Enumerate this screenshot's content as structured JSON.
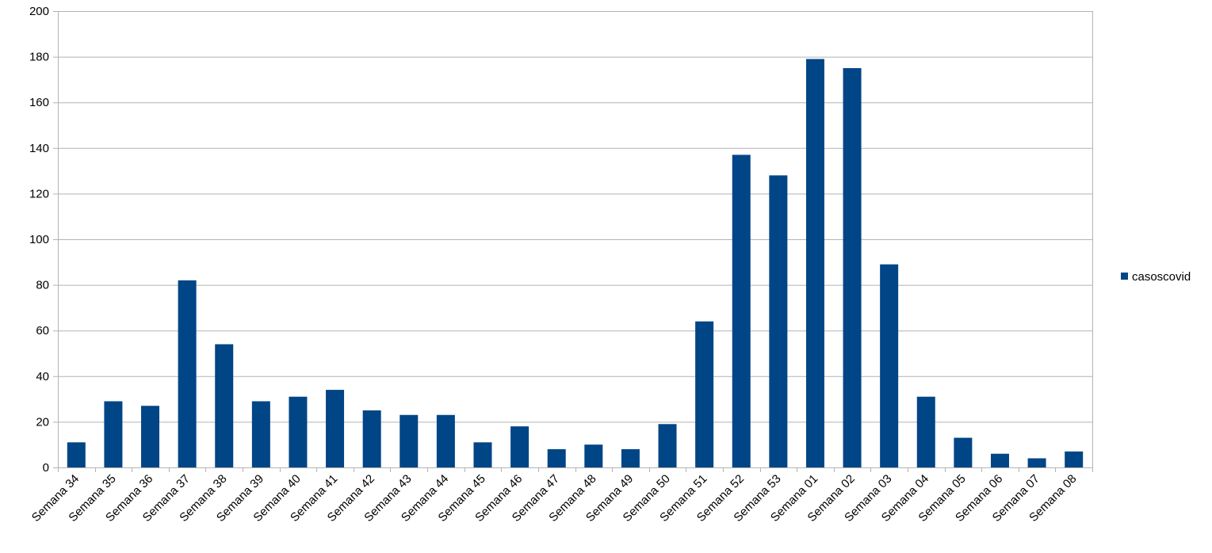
{
  "colors": {
    "bar": "#004586",
    "grid": "#b3b3b3",
    "axis": "#b3b3b3",
    "background": "#ffffff"
  },
  "chart_data": {
    "type": "bar",
    "title": "",
    "xlabel": "",
    "ylabel": "",
    "ylim": [
      0,
      200
    ],
    "yticks": [
      0,
      20,
      40,
      60,
      80,
      100,
      120,
      140,
      160,
      180,
      200
    ],
    "grid": true,
    "legend_position": "right",
    "categories": [
      "Semana 34",
      "Semana 35",
      "Semana 36",
      "Semana 37",
      "Semana 38",
      "Semana 39",
      "Semana 40",
      "Semana 41",
      "Semana 42",
      "Semana 43",
      "Semana 44",
      "Semana 45",
      "Semana 46",
      "Semana 47",
      "Semana 48",
      "Semana 49",
      "Semana 50",
      "Semana 51",
      "Semana 52",
      "Semana 53",
      "Semana 01",
      "Semana 02",
      "Semana 03",
      "Semana 04",
      "Semana 05",
      "Semana 06",
      "Semana 07",
      "Semana 08"
    ],
    "series": [
      {
        "name": "casoscovid",
        "values": [
          11,
          29,
          27,
          82,
          54,
          29,
          31,
          34,
          25,
          23,
          23,
          11,
          18,
          8,
          10,
          8,
          19,
          64,
          137,
          128,
          179,
          175,
          89,
          31,
          13,
          6,
          4,
          7
        ]
      }
    ]
  }
}
